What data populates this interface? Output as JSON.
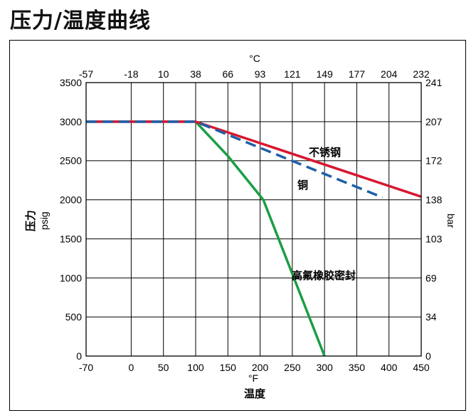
{
  "page": {
    "title": "压力/温度曲线"
  },
  "chart_data": {
    "type": "line",
    "title": "压力/温度曲线",
    "x_axis": {
      "label": "温度",
      "unit": "°F",
      "range": [
        -70,
        450
      ],
      "ticks": [
        -70,
        0,
        50,
        100,
        150,
        200,
        250,
        300,
        350,
        400,
        450
      ]
    },
    "x2_axis": {
      "unit": "°C",
      "ticks": [
        {
          "label": "-57",
          "f": -70
        },
        {
          "label": "-18",
          "f": 0
        },
        {
          "label": "10",
          "f": 50
        },
        {
          "label": "38",
          "f": 100
        },
        {
          "label": "66",
          "f": 150
        },
        {
          "label": "93",
          "f": 200
        },
        {
          "label": "121",
          "f": 250
        },
        {
          "label": "149",
          "f": 300
        },
        {
          "label": "177",
          "f": 350
        },
        {
          "label": "204",
          "f": 400
        },
        {
          "label": "232",
          "f": 450
        }
      ]
    },
    "y_axis": {
      "label": "压力",
      "unit": "psig",
      "range": [
        0,
        3500
      ],
      "ticks": [
        0,
        500,
        1000,
        1500,
        2000,
        2500,
        3000,
        3500
      ]
    },
    "y2_axis": {
      "unit": "bar",
      "ticks": [
        {
          "label": "0",
          "psig": 0
        },
        {
          "label": "34",
          "psig": 500
        },
        {
          "label": "69",
          "psig": 1000
        },
        {
          "label": "103",
          "psig": 1500
        },
        {
          "label": "138",
          "psig": 2000
        },
        {
          "label": "172",
          "psig": 2500
        },
        {
          "label": "207",
          "psig": 3000
        },
        {
          "label": "241",
          "psig": 3500
        }
      ]
    },
    "grid": true,
    "series": [
      {
        "name": "不锈钢",
        "color": "#d7172f",
        "style": "solid",
        "points": [
          [
            -70,
            3000
          ],
          [
            100,
            3000
          ],
          [
            450,
            2040
          ]
        ]
      },
      {
        "name": "铜",
        "color": "#1f5fa8",
        "style": "dashed",
        "points": [
          [
            -70,
            3000
          ],
          [
            100,
            3000
          ],
          [
            390,
            2030
          ]
        ]
      },
      {
        "name": "高氟橡胶密封",
        "color": "#1b9e45",
        "style": "solid",
        "points": [
          [
            -70,
            3000
          ],
          [
            100,
            3000
          ],
          [
            150,
            2560
          ],
          [
            205,
            2000
          ],
          [
            300,
            0
          ]
        ]
      }
    ]
  }
}
